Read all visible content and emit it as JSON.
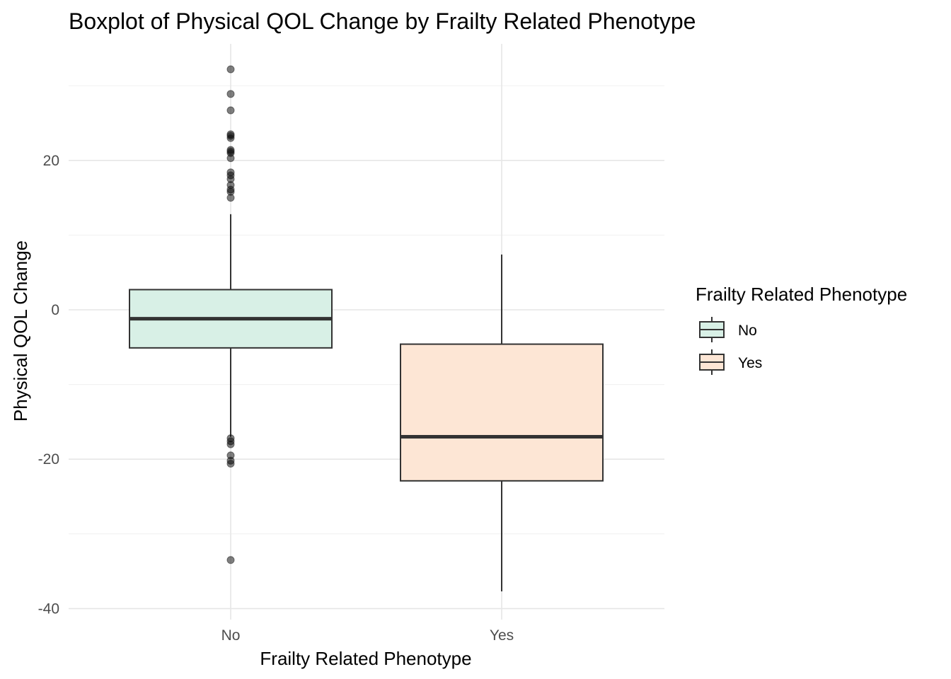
{
  "chart_data": {
    "type": "boxplot",
    "title": "Boxplot of Physical QOL Change by Frailty Related Phenotype",
    "xlabel": "Frailty Related Phenotype",
    "ylabel": "Physical QOL Change",
    "ylim": [
      -40,
      32
    ],
    "yticks": [
      -40,
      -20,
      0,
      20
    ],
    "categories": [
      "No",
      "Yes"
    ],
    "grid": true,
    "legend": {
      "title": "Frailty Related Phenotype",
      "position": "right",
      "entries": [
        {
          "label": "No",
          "fill": "#d8f0e6"
        },
        {
          "label": "Yes",
          "fill": "#fde6d5"
        }
      ]
    },
    "boxes": [
      {
        "category": "No",
        "whisker_low": -17.0,
        "q1": -5.1,
        "median": -1.2,
        "q3": 2.7,
        "whisker_high": 12.8,
        "outliers": [
          32.2,
          28.9,
          26.7,
          23.5,
          23.3,
          23.0,
          21.4,
          21.2,
          21.0,
          20.3,
          18.4,
          18.0,
          17.5,
          16.7,
          16.1,
          15.8,
          15.0,
          -17.2,
          -17.6,
          -18.0,
          -19.5,
          -20.2,
          -20.6,
          -33.5
        ],
        "fill": "#d8f0e6"
      },
      {
        "category": "Yes",
        "whisker_low": -37.7,
        "q1": -22.9,
        "median": -17.0,
        "q3": -4.6,
        "whisker_high": 7.4,
        "outliers": [],
        "fill": "#fde6d5"
      }
    ]
  }
}
